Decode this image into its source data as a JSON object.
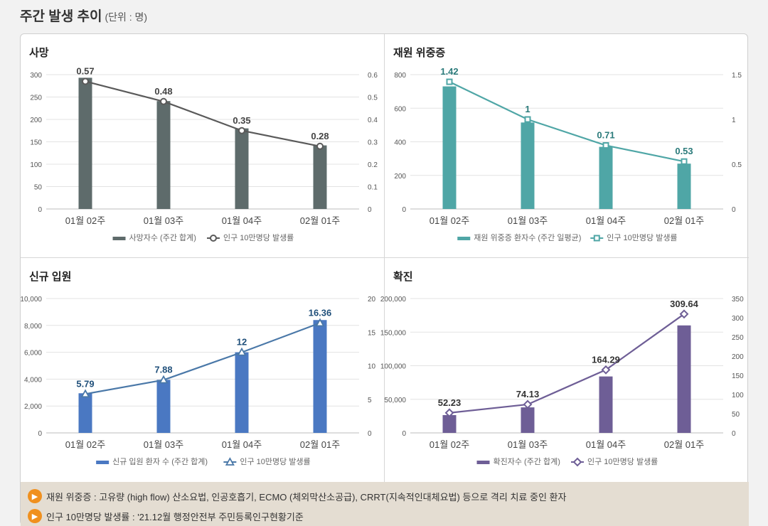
{
  "page": {
    "title": "주간 발생 추이",
    "unit": "(단위 : 명)"
  },
  "chart_data": [
    {
      "id": "deaths",
      "type": "bar",
      "title": "사망",
      "categories": [
        "01월 02주",
        "01월 03주",
        "01월 04주",
        "02월 01주"
      ],
      "series": [
        {
          "name": "사망자수 (주간 합계)",
          "kind": "bar",
          "axis": "left",
          "values": [
            293,
            241,
            180,
            142
          ]
        },
        {
          "name": "인구 10만명당 발생률",
          "kind": "line",
          "axis": "right",
          "marker": "circle",
          "values": [
            0.57,
            0.48,
            0.35,
            0.28
          ],
          "labels": [
            "0.57",
            "0.48",
            "0.35",
            "0.28"
          ]
        }
      ],
      "y_left": {
        "min": 0,
        "max": 300,
        "ticks": [
          0,
          50,
          100,
          150,
          200,
          250,
          300
        ],
        "tick_labels": [
          "0",
          "50",
          "100",
          "150",
          "200",
          "250",
          "300"
        ]
      },
      "y_right": {
        "min": 0,
        "max": 0.6,
        "ticks": [
          0,
          0.1,
          0.2,
          0.3,
          0.4,
          0.5,
          0.6
        ],
        "tick_labels": [
          "0",
          "0.1",
          "0.2",
          "0.3",
          "0.4",
          "0.5",
          "0.6"
        ]
      },
      "grid": true,
      "legend": "bottom",
      "colors": {
        "bar": "#5e6b6b",
        "line": "#5a5a5a",
        "label": "#444444"
      }
    },
    {
      "id": "severe",
      "type": "bar",
      "title": "재원 위중증",
      "categories": [
        "01월 02주",
        "01월 03주",
        "01월 04주",
        "02월 01주"
      ],
      "series": [
        {
          "name": "재원 위중증 환자수 (주간 일평균)",
          "kind": "bar",
          "axis": "left",
          "values": [
            730,
            515,
            370,
            270
          ]
        },
        {
          "name": "인구 10만명당 발생률",
          "kind": "line",
          "axis": "right",
          "marker": "square",
          "values": [
            1.42,
            1.0,
            0.71,
            0.53
          ],
          "labels": [
            "1.42",
            "1",
            "0.71",
            "0.53"
          ]
        }
      ],
      "y_left": {
        "min": 0,
        "max": 800,
        "ticks": [
          0,
          200,
          400,
          600,
          800
        ],
        "tick_labels": [
          "0",
          "200",
          "400",
          "600",
          "800"
        ]
      },
      "y_right": {
        "min": 0,
        "max": 1.5,
        "ticks": [
          0,
          0.5,
          1,
          1.5
        ],
        "tick_labels": [
          "0",
          "0.5",
          "1",
          "1.5"
        ]
      },
      "grid": true,
      "legend": "bottom",
      "colors": {
        "bar": "#4fa6a6",
        "line": "#4fa6a6",
        "label": "#2a7a7a"
      }
    },
    {
      "id": "admissions",
      "type": "bar",
      "title": "신규 입원",
      "categories": [
        "01월 02주",
        "01월 03주",
        "01월 04주",
        "02월 01주"
      ],
      "series": [
        {
          "name": "신규 입원 환자 수 (주간 합계)",
          "kind": "bar",
          "axis": "left",
          "values": [
            2950,
            3950,
            6000,
            8400
          ]
        },
        {
          "name": "인구 10만명당 발생률",
          "kind": "line",
          "axis": "right",
          "marker": "triangle",
          "values": [
            5.79,
            7.88,
            12,
            16.36
          ],
          "labels": [
            "5.79",
            "7.88",
            "12",
            "16.36"
          ]
        }
      ],
      "y_left": {
        "min": 0,
        "max": 10000,
        "ticks": [
          0,
          2000,
          4000,
          6000,
          8000,
          10000
        ],
        "tick_labels": [
          "0",
          "2,000",
          "4,000",
          "6,000",
          "8,000",
          "10,000"
        ]
      },
      "y_right": {
        "min": 0,
        "max": 20,
        "ticks": [
          0,
          5,
          10,
          15,
          20
        ],
        "tick_labels": [
          "0",
          "5",
          "10",
          "15",
          "20"
        ]
      },
      "grid": true,
      "legend": "bottom",
      "colors": {
        "bar": "#4a78c2",
        "line": "#4a78a8",
        "label": "#1f4f7a"
      }
    },
    {
      "id": "confirmed",
      "type": "bar",
      "title": "확진",
      "categories": [
        "01월 02주",
        "01월 03주",
        "01월 04주",
        "02월 01주"
      ],
      "series": [
        {
          "name": "확진자수 (주간 합계)",
          "kind": "bar",
          "axis": "left",
          "values": [
            26500,
            38000,
            84000,
            160000
          ]
        },
        {
          "name": "인구 10만명당 발생률",
          "kind": "line",
          "axis": "right",
          "marker": "diamond",
          "values": [
            52.23,
            74.13,
            164.29,
            309.64
          ],
          "labels": [
            "52.23",
            "74.13",
            "164.29",
            "309.64"
          ]
        }
      ],
      "y_left": {
        "min": 0,
        "max": 200000,
        "ticks": [
          0,
          50000,
          100000,
          150000,
          200000
        ],
        "tick_labels": [
          "0",
          "50,000",
          "100,000",
          "150,000",
          "200,000"
        ]
      },
      "y_right": {
        "min": 0,
        "max": 350,
        "ticks": [
          0,
          50,
          100,
          150,
          200,
          250,
          300,
          350
        ],
        "tick_labels": [
          "0",
          "50",
          "100",
          "150",
          "200",
          "250",
          "300",
          "350"
        ]
      },
      "grid": true,
      "legend": "bottom",
      "colors": {
        "bar": "#6e5e96",
        "line": "#6e5e96",
        "label": "#333333"
      }
    }
  ],
  "footnotes": [
    {
      "icon": "speaker-icon",
      "text": "재원 위중증 : 고유량 (high flow) 산소요법, 인공호흡기, ECMO (체외막산소공급), CRRT(지속적인대체요법) 등으로 격리 치료 중인 환자"
    },
    {
      "icon": "speaker-icon",
      "text": "인구 10만명당 발생률 : '21.12월 행정안전부 주민등록인구현황기준"
    }
  ],
  "colors": {
    "footnote_bg": "#e4ddd2",
    "accent": "#f0901e",
    "grid": "#e3e3e3"
  }
}
